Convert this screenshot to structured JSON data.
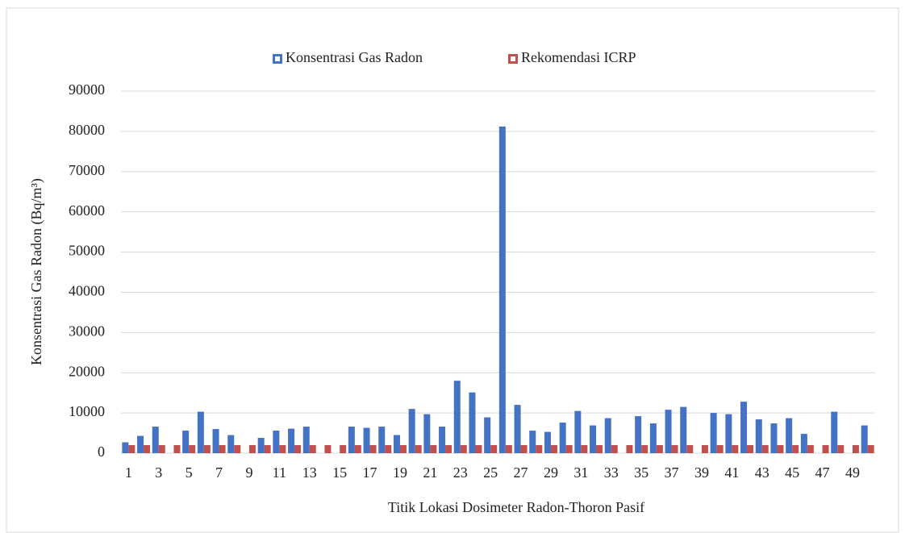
{
  "chart_data": {
    "type": "bar",
    "x_label": "Titik Lokasi Dosimeter Radon-Thoron Pasif",
    "y_label": "Konsentrasi Gas Radon (Bq/m³)",
    "categories": [
      "1",
      null,
      "3",
      null,
      "5",
      null,
      "7",
      null,
      "9",
      null,
      "11",
      null,
      "13",
      null,
      "15",
      null,
      "17",
      null,
      "19",
      null,
      "21",
      null,
      "23",
      null,
      "25",
      null,
      "27",
      null,
      "29",
      null,
      "31",
      null,
      "33",
      null,
      "35",
      null,
      "37",
      null,
      "39",
      null,
      "41",
      null,
      "43",
      null,
      "45",
      null,
      "47",
      null,
      "49",
      null
    ],
    "series": [
      {
        "name": "Konsentrasi Gas Radon",
        "color": "#4472c4",
        "values": [
          2700,
          4300,
          6600,
          0,
          5600,
          10300,
          6000,
          4500,
          0,
          3800,
          5600,
          6100,
          6600,
          0,
          0,
          6600,
          6300,
          6600,
          4500,
          11000,
          9700,
          6600,
          18000,
          15100,
          8900,
          81200,
          12000,
          5600,
          5300,
          7600,
          10500,
          6900,
          8700,
          0,
          9200,
          7400,
          10800,
          11500,
          0,
          10000,
          9700,
          12800,
          8400,
          7400,
          8700,
          4800,
          0,
          10300,
          0,
          6900
        ]
      },
      {
        "name": "Rekomendasi ICRP",
        "color": "#c0504d",
        "values": [
          2000,
          2000,
          2000,
          2000,
          2000,
          2000,
          2000,
          2000,
          2000,
          2000,
          2000,
          2000,
          2000,
          2000,
          2000,
          2000,
          2000,
          2000,
          2000,
          2000,
          2000,
          2000,
          2000,
          2000,
          2000,
          2000,
          2000,
          2000,
          2000,
          2000,
          2000,
          2000,
          2000,
          2000,
          2000,
          2000,
          2000,
          2000,
          2000,
          2000,
          2000,
          2000,
          2000,
          2000,
          2000,
          2000,
          2000,
          2000,
          2000,
          2000
        ]
      }
    ],
    "ylim": [
      0,
      90000
    ],
    "yticks": [
      0,
      10000,
      20000,
      30000,
      40000,
      50000,
      60000,
      70000,
      80000,
      90000
    ],
    "grid": true,
    "legend": "top"
  }
}
